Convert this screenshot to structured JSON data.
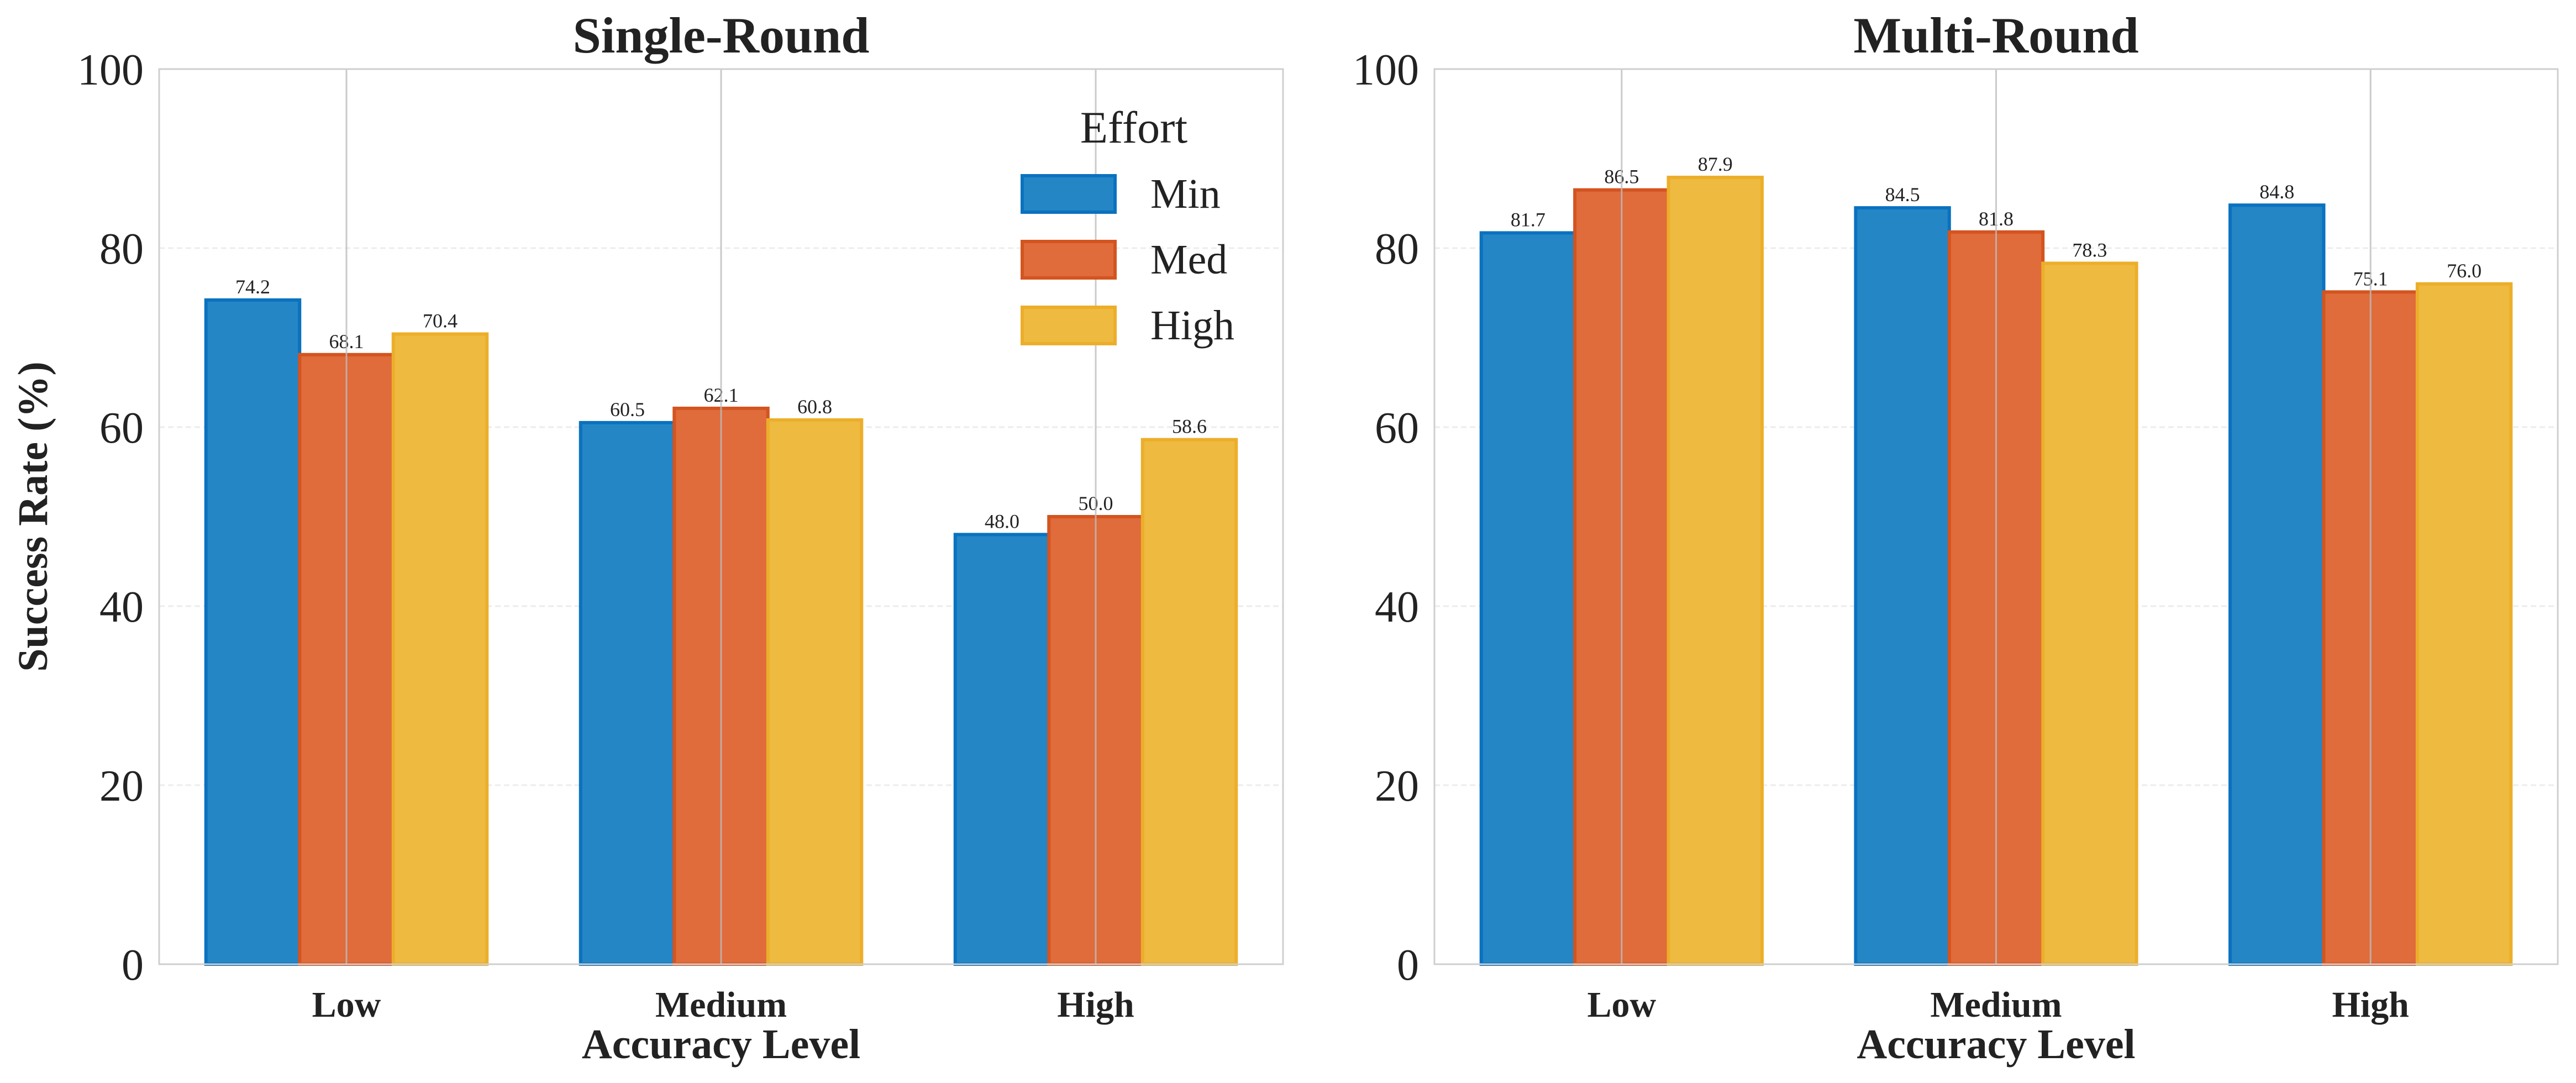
{
  "chart_data": [
    {
      "type": "bar",
      "title": "Single-Round",
      "xlabel": "Accuracy Level",
      "ylabel": "Success Rate (%)",
      "categories": [
        "Low",
        "Medium",
        "High"
      ],
      "ylim": [
        0,
        100
      ],
      "yticks": [
        "0",
        "20",
        "40",
        "60",
        "80",
        "100"
      ],
      "grid": true,
      "legend": {
        "title": "Effort",
        "placement": "top-right"
      },
      "series": [
        {
          "name": "Min",
          "values": [
            74.2,
            60.5,
            48.0
          ],
          "labels": [
            "74.2",
            "60.5",
            "48.0"
          ]
        },
        {
          "name": "Med",
          "values": [
            68.1,
            62.1,
            50.0
          ],
          "labels": [
            "68.1",
            "62.1",
            "50.0"
          ]
        },
        {
          "name": "High",
          "values": [
            70.4,
            60.8,
            58.6
          ],
          "labels": [
            "70.4",
            "60.8",
            "58.6"
          ]
        }
      ]
    },
    {
      "type": "bar",
      "title": "Multi-Round",
      "xlabel": "Accuracy Level",
      "ylabel": "",
      "categories": [
        "Low",
        "Medium",
        "High"
      ],
      "ylim": [
        0,
        100
      ],
      "yticks": [
        "0",
        "20",
        "40",
        "60",
        "80",
        "100"
      ],
      "grid": true,
      "legend": null,
      "series": [
        {
          "name": "Min",
          "values": [
            81.7,
            84.5,
            84.8
          ],
          "labels": [
            "81.7",
            "84.5",
            "84.8"
          ]
        },
        {
          "name": "Med",
          "values": [
            86.5,
            81.8,
            75.1
          ],
          "labels": [
            "86.5",
            "81.8",
            "75.1"
          ]
        },
        {
          "name": "High",
          "values": [
            87.9,
            78.3,
            76.0
          ],
          "labels": [
            "87.9",
            "78.3",
            "76.0"
          ]
        }
      ]
    }
  ],
  "colors": {
    "Min": {
      "fill": "#2586c6",
      "edge": "#0a72bf"
    },
    "Med": {
      "fill": "#e06b3b",
      "edge": "#d4541f"
    },
    "High": {
      "fill": "#eeba40",
      "edge": "#ecae2a"
    }
  }
}
